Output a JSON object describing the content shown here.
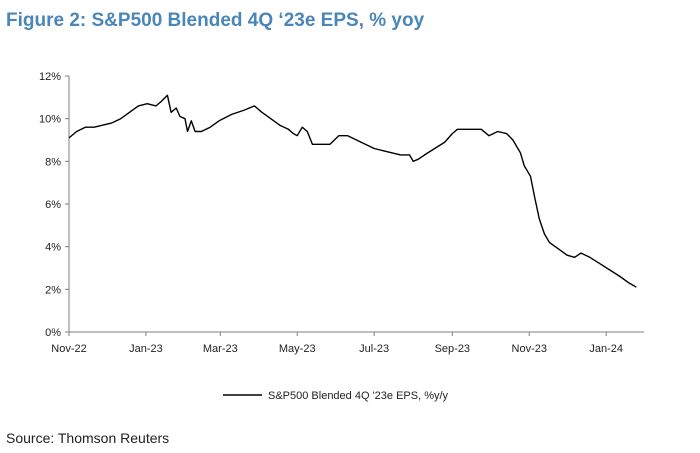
{
  "figure": {
    "title": "Figure 2: S&P500 Blended 4Q ‘23e EPS, % yoy",
    "source": "Source: Thomson Reuters"
  },
  "chart_data": {
    "type": "line",
    "title": "Figure 2: S&P500 Blended 4Q ‘23e EPS, % yoy",
    "xlabel": "",
    "ylabel": "",
    "ylim": [
      0,
      12
    ],
    "xlim": [
      "2022-11-01",
      "2024-01-31"
    ],
    "y_ticks": [
      "0%",
      "2%",
      "4%",
      "6%",
      "8%",
      "10%",
      "12%"
    ],
    "x_ticks": [
      {
        "date": "2022-11-01",
        "label": "Nov-22"
      },
      {
        "date": "2023-01-01",
        "label": "Jan-23"
      },
      {
        "date": "2023-03-01",
        "label": "Mar-23"
      },
      {
        "date": "2023-05-01",
        "label": "May-23"
      },
      {
        "date": "2023-07-01",
        "label": "Jul-23"
      },
      {
        "date": "2023-09-01",
        "label": "Sep-23"
      },
      {
        "date": "2023-11-01",
        "label": "Nov-23"
      },
      {
        "date": "2024-01-01",
        "label": "Jan-24"
      }
    ],
    "grid": false,
    "legend": "bottom-center",
    "line_color": "#000000",
    "series": [
      {
        "name": "S&P500 Blended 4Q '23e EPS, %y/y",
        "points": [
          [
            "2022-11-01",
            9.1
          ],
          [
            "2022-11-07",
            9.4
          ],
          [
            "2022-11-14",
            9.6
          ],
          [
            "2022-11-21",
            9.6
          ],
          [
            "2022-11-28",
            9.7
          ],
          [
            "2022-12-05",
            9.8
          ],
          [
            "2022-12-12",
            10.0
          ],
          [
            "2022-12-19",
            10.3
          ],
          [
            "2022-12-26",
            10.6
          ],
          [
            "2023-01-02",
            10.7
          ],
          [
            "2023-01-09",
            10.6
          ],
          [
            "2023-01-13",
            10.8
          ],
          [
            "2023-01-18",
            11.1
          ],
          [
            "2023-01-21",
            10.3
          ],
          [
            "2023-01-25",
            10.5
          ],
          [
            "2023-01-28",
            10.1
          ],
          [
            "2023-02-01",
            10.0
          ],
          [
            "2023-02-03",
            9.4
          ],
          [
            "2023-02-06",
            9.9
          ],
          [
            "2023-02-09",
            9.4
          ],
          [
            "2023-02-14",
            9.4
          ],
          [
            "2023-02-21",
            9.6
          ],
          [
            "2023-02-28",
            9.9
          ],
          [
            "2023-03-10",
            10.2
          ],
          [
            "2023-03-20",
            10.4
          ],
          [
            "2023-03-28",
            10.6
          ],
          [
            "2023-04-03",
            10.3
          ],
          [
            "2023-04-10",
            10.0
          ],
          [
            "2023-04-17",
            9.7
          ],
          [
            "2023-04-24",
            9.5
          ],
          [
            "2023-04-28",
            9.3
          ],
          [
            "2023-05-01",
            9.2
          ],
          [
            "2023-05-05",
            9.6
          ],
          [
            "2023-05-09",
            9.4
          ],
          [
            "2023-05-13",
            8.8
          ],
          [
            "2023-05-20",
            8.8
          ],
          [
            "2023-05-27",
            8.8
          ],
          [
            "2023-06-03",
            9.2
          ],
          [
            "2023-06-10",
            9.2
          ],
          [
            "2023-06-17",
            9.0
          ],
          [
            "2023-06-24",
            8.8
          ],
          [
            "2023-07-01",
            8.6
          ],
          [
            "2023-07-08",
            8.5
          ],
          [
            "2023-07-15",
            8.4
          ],
          [
            "2023-07-22",
            8.3
          ],
          [
            "2023-07-29",
            8.3
          ],
          [
            "2023-08-01",
            8.0
          ],
          [
            "2023-08-05",
            8.1
          ],
          [
            "2023-08-10",
            8.3
          ],
          [
            "2023-08-18",
            8.6
          ],
          [
            "2023-08-26",
            8.9
          ],
          [
            "2023-09-01",
            9.3
          ],
          [
            "2023-09-05",
            9.5
          ],
          [
            "2023-09-15",
            9.5
          ],
          [
            "2023-09-24",
            9.5
          ],
          [
            "2023-09-30",
            9.2
          ],
          [
            "2023-10-07",
            9.4
          ],
          [
            "2023-10-14",
            9.3
          ],
          [
            "2023-10-19",
            9.0
          ],
          [
            "2023-10-25",
            8.4
          ],
          [
            "2023-10-28",
            7.8
          ],
          [
            "2023-11-02",
            7.3
          ],
          [
            "2023-11-05",
            6.4
          ],
          [
            "2023-11-09",
            5.3
          ],
          [
            "2023-11-13",
            4.6
          ],
          [
            "2023-11-17",
            4.2
          ],
          [
            "2023-11-24",
            3.9
          ],
          [
            "2023-12-01",
            3.6
          ],
          [
            "2023-12-07",
            3.5
          ],
          [
            "2023-12-12",
            3.7
          ],
          [
            "2023-12-19",
            3.5
          ],
          [
            "2023-12-27",
            3.2
          ],
          [
            "2024-01-04",
            2.9
          ],
          [
            "2024-01-12",
            2.6
          ],
          [
            "2024-01-19",
            2.3
          ],
          [
            "2024-01-25",
            2.1
          ]
        ]
      }
    ]
  }
}
